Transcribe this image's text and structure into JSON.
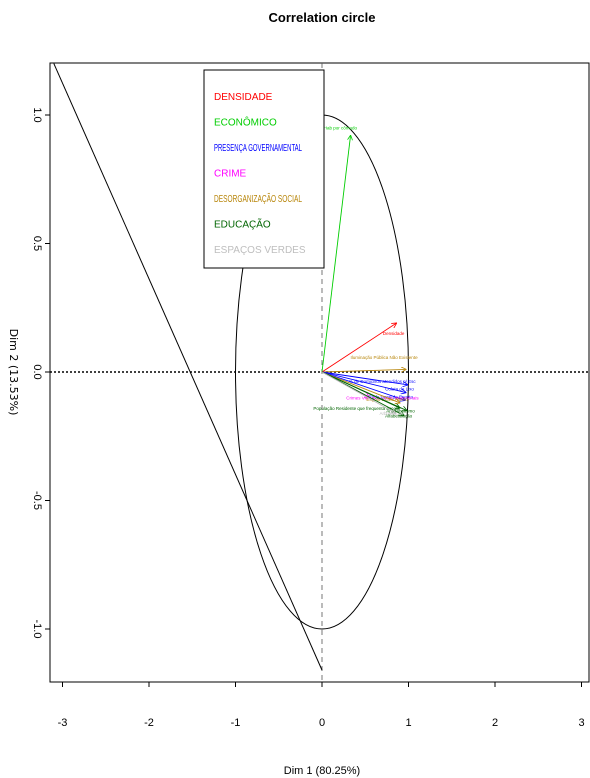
{
  "chart_data": {
    "type": "scatter",
    "title": "Correlation circle",
    "xlabel": "Dim 1 (80.25%)",
    "ylabel": "Dim 2 (13.53%)",
    "xlim": [
      -3.1,
      3.1
    ],
    "ylim": [
      -1.2,
      1.2
    ],
    "x_ticks": [
      "-3",
      "-2",
      "-1",
      "0",
      "1",
      "2",
      "3"
    ],
    "y_ticks": [
      "-1.0",
      "-0.5",
      "0.0",
      "0.5",
      "1.0"
    ],
    "y_tick_values": [
      -1.0,
      -0.5,
      0.0,
      0.5,
      1.0
    ],
    "x_tick_values": [
      -3,
      -2,
      -1,
      0,
      1,
      2,
      3
    ],
    "legend": [
      {
        "label": "DENSIDADE",
        "color": "#ff0000"
      },
      {
        "label": "ECONÔMICO",
        "color": "#00cd00"
      },
      {
        "label": "PRESENÇA GOVERNAMENTAL",
        "color": "#0000ff"
      },
      {
        "label": "CRIME",
        "color": "#ff00ff"
      },
      {
        "label": "DESORGANIZAÇÃO SOCIAL",
        "color": "#b8860b"
      },
      {
        "label": "EDUCAÇÃO",
        "color": "#006400"
      },
      {
        "label": "ESPAÇOS VERDES",
        "color": "#bebebe"
      }
    ],
    "arrows": [
      {
        "group": "ECONÔMICO",
        "label": "Hab por cômodo",
        "x": 0.33,
        "y": 0.92,
        "color": "#00cd00"
      },
      {
        "group": "DENSIDADE",
        "label": "Densidade",
        "x": 0.86,
        "y": 0.19,
        "color": "#ff0000"
      },
      {
        "group": "DESORGANIZAÇÃO SOCIAL",
        "label": "Iluminação Pública Não Existente",
        "x": 0.97,
        "y": 0.01,
        "color": "#b8860b"
      },
      {
        "group": "PRESENÇA GOVERNAMENTAL",
        "label": "% de Domicílios atendidos p/ Esc",
        "x": 0.99,
        "y": -0.05,
        "color": "#0000ff"
      },
      {
        "group": "PRESENÇA GOVERNAMENTAL",
        "label": "Coleta de Lixo",
        "x": 0.97,
        "y": -0.08,
        "color": "#0000ff"
      },
      {
        "group": "PRESENÇA GOVERNAMENTAL",
        "label": "Rede Geral de Esgoto",
        "x": 0.96,
        "y": -0.11,
        "color": "#0000ff"
      },
      {
        "group": "CRIME",
        "label": "Crimes Violentos Letais Intencionais",
        "x": 0.55,
        "y": -0.1,
        "color": "#ff00ff"
      },
      {
        "group": "DESORGANIZAÇÃO SOCIAL",
        "label": "Esgoto a Céu Aberto",
        "x": 0.9,
        "y": -0.12,
        "color": "#b8860b"
      },
      {
        "group": "EDUCAÇÃO",
        "label": "População Residente que frequenta escola",
        "x": 0.9,
        "y": -0.14,
        "color": "#006400"
      },
      {
        "group": "EDUCAÇÃO",
        "label": "Analfabetismo",
        "x": 0.98,
        "y": -0.15,
        "color": "#006400"
      },
      {
        "group": "EDUCAÇÃO",
        "label": "Alfabetização",
        "x": 0.95,
        "y": -0.17,
        "color": "#006400"
      },
      {
        "group": "ESPAÇOS VERDES",
        "label": "Arborização",
        "x": 0.85,
        "y": -0.16,
        "color": "#bebebe"
      }
    ],
    "reference_line": {
      "from": [
        -3.1,
        1.2
      ],
      "to": [
        0,
        -1.16
      ]
    },
    "unit_circle": true,
    "grid": false,
    "legend_position": "top-left"
  }
}
